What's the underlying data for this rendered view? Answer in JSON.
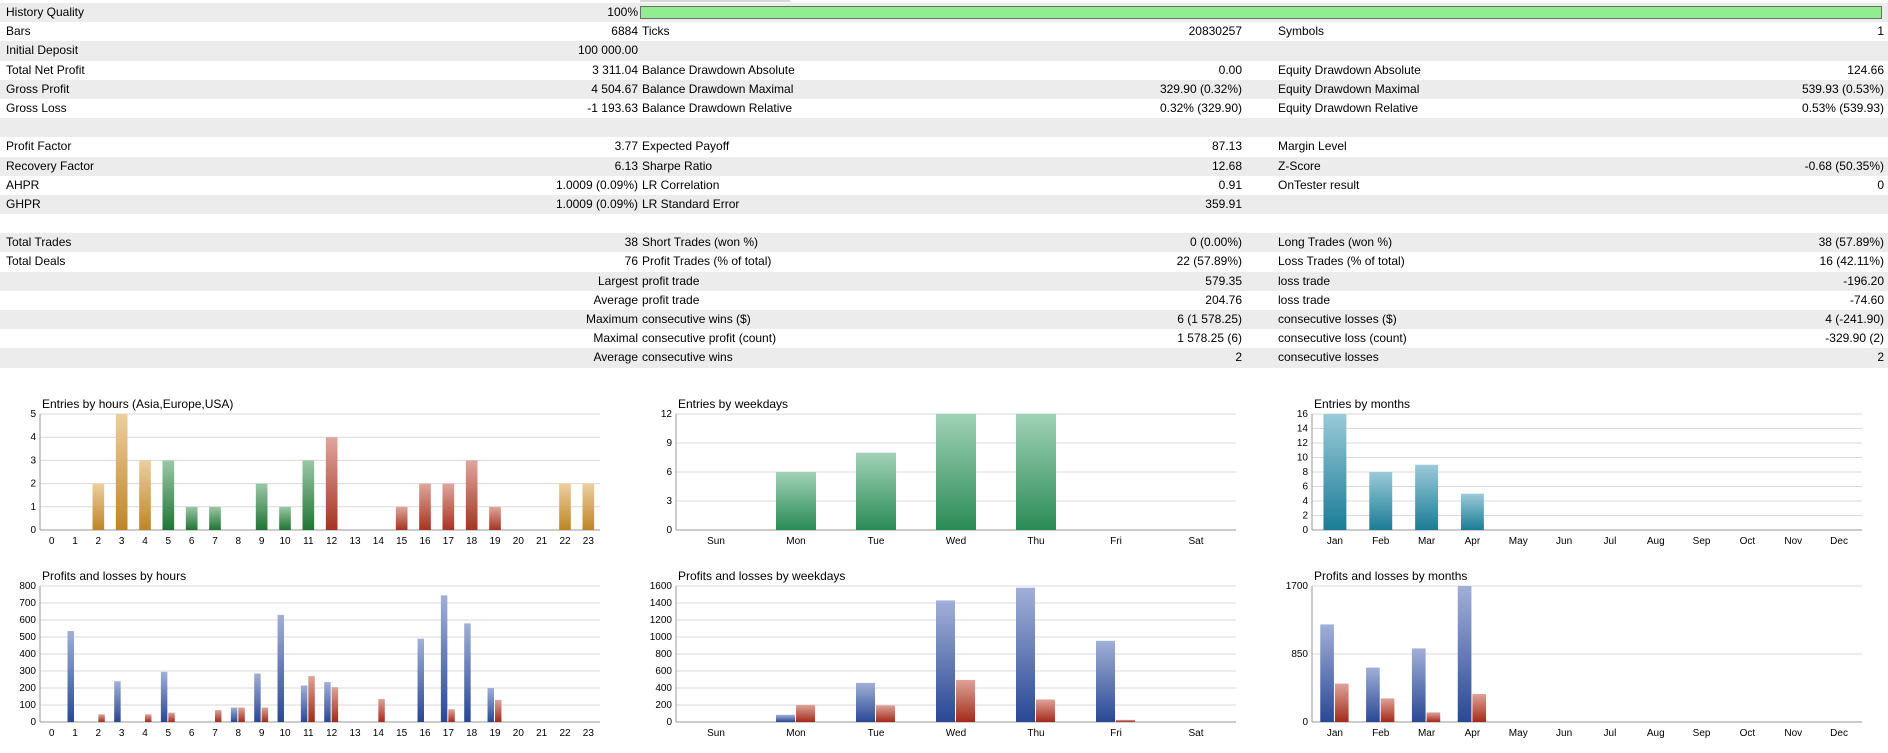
{
  "report": {
    "quality": {
      "label": "History Quality",
      "value": "100%",
      "fraction": 1.0,
      "bar_color": "#90ee90"
    },
    "rows": [
      {
        "c1": [
          "Bars",
          "6884"
        ],
        "c2": [
          "Ticks",
          "20830257"
        ],
        "c3": [
          "Symbols",
          "1"
        ]
      },
      {
        "c1": [
          "Initial Deposit",
          "100 000.00"
        ],
        "c2": [
          "",
          ""
        ],
        "c3": [
          "",
          ""
        ]
      },
      {
        "c1": [
          "Total Net Profit",
          "3 311.04"
        ],
        "c2": [
          "Balance Drawdown Absolute",
          "0.00"
        ],
        "c3": [
          "Equity Drawdown Absolute",
          "124.66"
        ]
      },
      {
        "c1": [
          "Gross Profit",
          "4 504.67"
        ],
        "c2": [
          "Balance Drawdown Maximal",
          "329.90 (0.32%)"
        ],
        "c3": [
          "Equity Drawdown Maximal",
          "539.93 (0.53%)"
        ]
      },
      {
        "c1": [
          "Gross Loss",
          "-1 193.63"
        ],
        "c2": [
          "Balance Drawdown Relative",
          "0.32% (329.90)"
        ],
        "c3": [
          "Equity Drawdown Relative",
          "0.53% (539.93)"
        ]
      },
      {
        "c1": [
          "",
          ""
        ],
        "c2": [
          "",
          ""
        ],
        "c3": [
          "",
          ""
        ]
      },
      {
        "c1": [
          "Profit Factor",
          "3.77"
        ],
        "c2": [
          "Expected Payoff",
          "87.13"
        ],
        "c3": [
          "Margin Level",
          ""
        ]
      },
      {
        "c1": [
          "Recovery Factor",
          "6.13"
        ],
        "c2": [
          "Sharpe Ratio",
          "12.68"
        ],
        "c3": [
          "Z-Score",
          "-0.68 (50.35%)"
        ]
      },
      {
        "c1": [
          "AHPR",
          "1.0009 (0.09%)"
        ],
        "c2": [
          "LR Correlation",
          "0.91"
        ],
        "c3": [
          "OnTester result",
          "0"
        ]
      },
      {
        "c1": [
          "GHPR",
          "1.0009 (0.09%)"
        ],
        "c2": [
          "LR Standard Error",
          "359.91"
        ],
        "c3": [
          "",
          ""
        ]
      },
      {
        "c1": [
          "",
          ""
        ],
        "c2": [
          "",
          ""
        ],
        "c3": [
          "",
          ""
        ]
      },
      {
        "c1": [
          "Total Trades",
          "38"
        ],
        "c2": [
          "Short Trades (won %)",
          "0 (0.00%)"
        ],
        "c3": [
          "Long Trades (won %)",
          "38 (57.89%)"
        ]
      },
      {
        "c1": [
          "Total Deals",
          "76"
        ],
        "c2": [
          "Profit Trades (% of total)",
          "22 (57.89%)"
        ],
        "c3": [
          "Loss Trades (% of total)",
          "16 (42.11%)"
        ]
      },
      {
        "c1": [
          "",
          "Largest"
        ],
        "c2": [
          "profit trade",
          "579.35"
        ],
        "c3": [
          "loss trade",
          "-196.20"
        ]
      },
      {
        "c1": [
          "",
          "Average"
        ],
        "c2": [
          "profit trade",
          "204.76"
        ],
        "c3": [
          "loss trade",
          "-74.60"
        ]
      },
      {
        "c1": [
          "",
          "Maximum"
        ],
        "c2": [
          "consecutive wins ($)",
          "6 (1 578.25)"
        ],
        "c3": [
          "consecutive losses ($)",
          "4 (-241.90)"
        ]
      },
      {
        "c1": [
          "",
          "Maximal"
        ],
        "c2": [
          "consecutive profit (count)",
          "1 578.25 (6)"
        ],
        "c3": [
          "consecutive loss (count)",
          "-329.90 (2)"
        ]
      },
      {
        "c1": [
          "",
          "Average"
        ],
        "c2": [
          "consecutive wins",
          "2"
        ],
        "c3": [
          "consecutive losses",
          "2"
        ]
      },
      {
        "c1": [
          "",
          ""
        ],
        "c2": [
          "",
          ""
        ],
        "c3": [
          "",
          ""
        ]
      }
    ]
  },
  "colors": {
    "asia": "#d4942a",
    "europe": "#22823a",
    "usa": "#b83a26",
    "weekday": "#2f9a60",
    "month": "#1e8aa8",
    "profit": "#2e4fa6",
    "loss": "#b5301c"
  },
  "chart_data": [
    {
      "id": "hours_entries",
      "type": "bar",
      "title": "Entries by hours (Asia,Europe,USA)",
      "categories": [
        "0",
        "1",
        "2",
        "3",
        "4",
        "5",
        "6",
        "7",
        "8",
        "9",
        "10",
        "11",
        "12",
        "13",
        "14",
        "15",
        "16",
        "17",
        "18",
        "19",
        "20",
        "21",
        "22",
        "23"
      ],
      "values": [
        0,
        0,
        2,
        5,
        3,
        3,
        1,
        1,
        0,
        2,
        1,
        3,
        4,
        0,
        0,
        1,
        2,
        2,
        3,
        1,
        0,
        0,
        2,
        2
      ],
      "bar_colors": [
        "asia",
        "asia",
        "asia",
        "asia",
        "asia",
        "europe",
        "europe",
        "europe",
        "europe",
        "europe",
        "europe",
        "europe",
        "usa",
        "usa",
        "usa",
        "usa",
        "usa",
        "usa",
        "usa",
        "usa",
        "usa",
        "usa",
        "asia",
        "asia"
      ],
      "ylim": [
        0,
        5
      ],
      "yticks": [
        "0",
        "1",
        "2",
        "3",
        "4",
        "5"
      ],
      "grid": true
    },
    {
      "id": "weekday_entries",
      "type": "bar",
      "title": "Entries by weekdays",
      "categories": [
        "Sun",
        "Mon",
        "Tue",
        "Wed",
        "Thu",
        "Fri",
        "Sat"
      ],
      "values": [
        0,
        6,
        8,
        12,
        12,
        0,
        0
      ],
      "color": "weekday",
      "ylim": [
        0,
        12
      ],
      "yticks": [
        "0",
        "3",
        "6",
        "9",
        "12"
      ],
      "grid": true
    },
    {
      "id": "month_entries",
      "type": "bar",
      "title": "Entries by months",
      "categories": [
        "Jan",
        "Feb",
        "Mar",
        "Apr",
        "May",
        "Jun",
        "Jul",
        "Aug",
        "Sep",
        "Oct",
        "Nov",
        "Dec"
      ],
      "values": [
        16,
        8,
        9,
        5,
        0,
        0,
        0,
        0,
        0,
        0,
        0,
        0
      ],
      "color": "month",
      "ylim": [
        0,
        16
      ],
      "yticks": [
        "0",
        "2",
        "4",
        "6",
        "8",
        "10",
        "12",
        "14",
        "16"
      ],
      "grid": true
    },
    {
      "id": "hours_pl",
      "type": "bar",
      "title": "Profits and losses by hours",
      "categories": [
        "0",
        "1",
        "2",
        "3",
        "4",
        "5",
        "6",
        "7",
        "8",
        "9",
        "10",
        "11",
        "12",
        "13",
        "14",
        "15",
        "16",
        "17",
        "18",
        "19",
        "20",
        "21",
        "22",
        "23"
      ],
      "series": [
        {
          "values": [
            0,
            535,
            0,
            240,
            0,
            295,
            0,
            0,
            85,
            285,
            630,
            215,
            235,
            0,
            0,
            0,
            490,
            745,
            580,
            200,
            0,
            0,
            0,
            0
          ]
        },
        {
          "values": [
            0,
            0,
            45,
            0,
            45,
            55,
            0,
            70,
            85,
            85,
            0,
            270,
            205,
            0,
            135,
            0,
            0,
            75,
            0,
            130,
            0,
            0,
            0,
            0
          ]
        }
      ],
      "series_colors": [
        "profit",
        "loss"
      ],
      "ylim": [
        0,
        800
      ],
      "yticks": [
        "0",
        "100",
        "200",
        "300",
        "400",
        "500",
        "600",
        "700",
        "800"
      ],
      "grid": true
    },
    {
      "id": "weekday_pl",
      "type": "bar",
      "title": "Profits and losses by weekdays",
      "categories": [
        "Sun",
        "Mon",
        "Tue",
        "Wed",
        "Thu",
        "Fri",
        "Sat"
      ],
      "series": [
        {
          "values": [
            0,
            85,
            460,
            1430,
            1580,
            955,
            0
          ]
        },
        {
          "values": [
            0,
            200,
            195,
            495,
            265,
            25,
            0
          ]
        }
      ],
      "series_colors": [
        "profit",
        "loss"
      ],
      "ylim": [
        0,
        1600
      ],
      "yticks": [
        "0",
        "200",
        "400",
        "600",
        "800",
        "1000",
        "1200",
        "1400",
        "1600"
      ],
      "grid": true
    },
    {
      "id": "month_pl",
      "type": "bar",
      "title": "Profits and losses by months",
      "categories": [
        "Jan",
        "Feb",
        "Mar",
        "Apr",
        "May",
        "Jun",
        "Jul",
        "Aug",
        "Sep",
        "Oct",
        "Nov",
        "Dec"
      ],
      "series": [
        {
          "values": [
            1220,
            680,
            920,
            1700,
            0,
            0,
            0,
            0,
            0,
            0,
            0,
            0
          ]
        },
        {
          "values": [
            480,
            295,
            120,
            350,
            0,
            0,
            0,
            0,
            0,
            0,
            0,
            0
          ]
        }
      ],
      "series_colors": [
        "profit",
        "loss"
      ],
      "ylim": [
        0,
        1700
      ],
      "yticks": [
        "0",
        "850",
        "1700"
      ],
      "grid": true
    }
  ]
}
